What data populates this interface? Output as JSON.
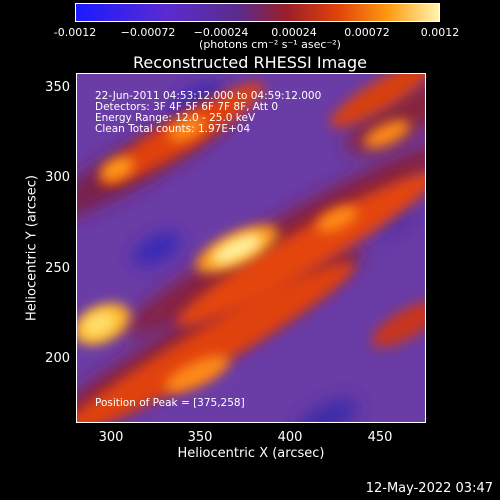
{
  "colorbar": {
    "ticks": [
      "-0.0012",
      "−0.00072",
      "−0.00024",
      "0.00024",
      "0.00072",
      "0.0012"
    ],
    "unit": "(photons cm⁻² s⁻¹ asec⁻²)"
  },
  "title": "Reconstructed RHESSI Image",
  "info": {
    "line1": "22-Jun-2011 04:53:12.000 to 04:59:12.000",
    "line2": "Detectors: 3F 4F 5F 6F 7F 8F, Att 0",
    "line3": "Energy Range: 12.0 - 25.0 keV",
    "line4": "Clean     Total counts: 1.97E+04",
    "peak": "Position of Peak = [375,258]"
  },
  "axes": {
    "xlabel": "Heliocentric X (arcsec)",
    "ylabel": "Heliocentric Y (arcsec)",
    "xticks": [
      "300",
      "350",
      "400",
      "450"
    ],
    "yticks": [
      "350",
      "300",
      "250",
      "200"
    ]
  },
  "timestamp": "12-May-2022 03:47"
}
